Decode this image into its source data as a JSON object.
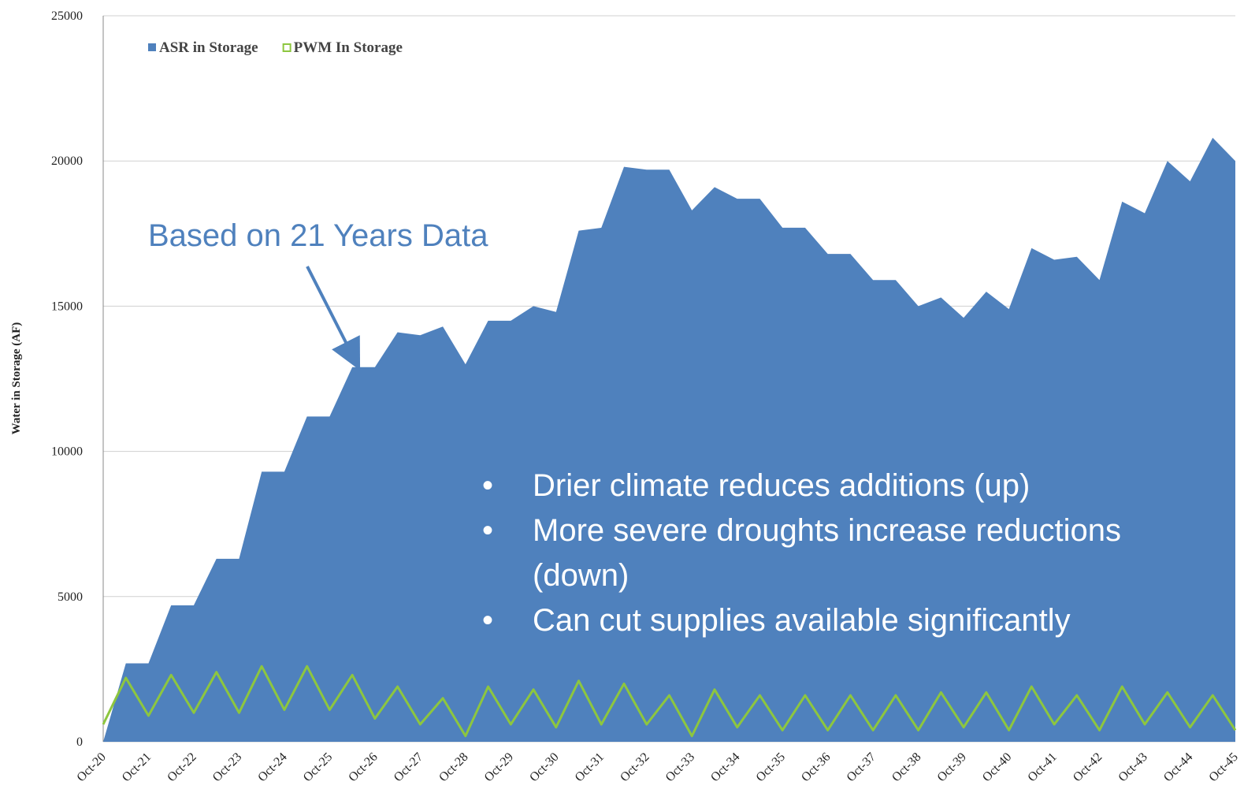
{
  "chart_data": {
    "type": "area",
    "y_label": "Water in Storage (AF)",
    "categories": [
      "Oct-20",
      null,
      "Oct-21",
      null,
      "Oct-22",
      null,
      "Oct-23",
      null,
      "Oct-24",
      null,
      "Oct-25",
      null,
      "Oct-26",
      null,
      "Oct-27",
      null,
      "Oct-28",
      null,
      "Oct-29",
      null,
      "Oct-30",
      null,
      "Oct-31",
      null,
      "Oct-32",
      null,
      "Oct-33",
      null,
      "Oct-34",
      null,
      "Oct-35",
      null,
      "Oct-36",
      null,
      "Oct-37",
      null,
      "Oct-38",
      null,
      "Oct-39",
      null,
      "Oct-40",
      null,
      "Oct-41",
      null,
      "Oct-42",
      null,
      "Oct-43",
      null,
      "Oct-44",
      null,
      "Oct-45"
    ],
    "series": [
      {
        "name": "ASR in Storage",
        "color": "#4f81bd",
        "kind": "area",
        "values": [
          0,
          2700,
          2700,
          4700,
          4700,
          6300,
          6300,
          9300,
          9300,
          11200,
          11200,
          12900,
          12900,
          14100,
          14000,
          14300,
          13000,
          14500,
          14500,
          15000,
          14800,
          17600,
          17700,
          19800,
          19700,
          19700,
          18300,
          19100,
          18700,
          18700,
          17700,
          17700,
          16800,
          16800,
          15900,
          15900,
          15000,
          15300,
          14600,
          15500,
          14900,
          17000,
          16600,
          16700,
          15900,
          18600,
          18200,
          20000,
          19300,
          20800,
          20000
        ]
      },
      {
        "name": "PWM In Storage",
        "color": "#8dc63f",
        "kind": "line",
        "values": [
          600,
          2200,
          900,
          2300,
          1000,
          2400,
          1000,
          2600,
          1100,
          2600,
          1100,
          2300,
          800,
          1900,
          600,
          1500,
          200,
          1900,
          600,
          1800,
          500,
          2100,
          600,
          2000,
          600,
          1600,
          200,
          1800,
          500,
          1600,
          400,
          1600,
          400,
          1600,
          400,
          1600,
          400,
          1700,
          500,
          1700,
          400,
          1900,
          600,
          1600,
          400,
          1900,
          600,
          1700,
          500,
          1600,
          400
        ]
      }
    ],
    "ylim": [
      0,
      25000
    ],
    "yticks": [
      0,
      5000,
      10000,
      15000,
      20000,
      25000
    ],
    "grid": true,
    "legend": "upper left",
    "annotations": [
      "Based on 21 Years Data"
    ],
    "bullets": [
      "Drier climate reduces additions (up)",
      "More severe droughts increase reductions (down)",
      "Can cut supplies available significantly"
    ]
  }
}
